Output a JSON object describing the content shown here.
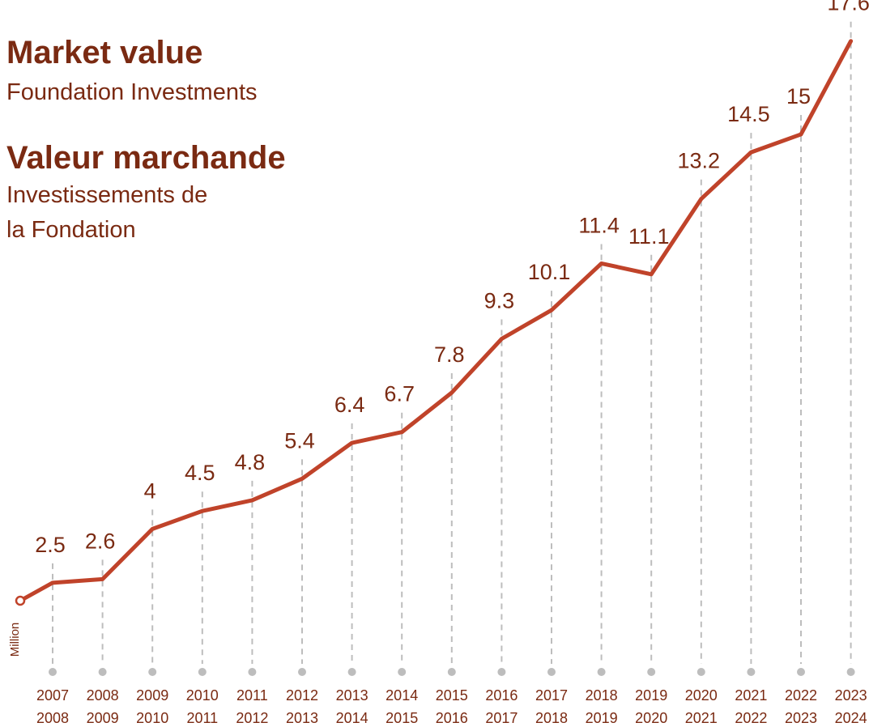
{
  "chart_data": {
    "type": "line",
    "title": "Market value",
    "subtitle": "Foundation Investments",
    "title_fr": "Valeur marchande",
    "subtitle_fr": [
      "Investissements de",
      "la Fondation"
    ],
    "y_label": "Million",
    "categories": [
      [
        "2007",
        "2008"
      ],
      [
        "2008",
        "2009"
      ],
      [
        "2009",
        "2010"
      ],
      [
        "2010",
        "2011"
      ],
      [
        "2011",
        "2012"
      ],
      [
        "2012",
        "2013"
      ],
      [
        "2013",
        "2014"
      ],
      [
        "2014",
        "2015"
      ],
      [
        "2015",
        "2016"
      ],
      [
        "2016",
        "2017"
      ],
      [
        "2017",
        "2018"
      ],
      [
        "2018",
        "2019"
      ],
      [
        "2019",
        "2020"
      ],
      [
        "2020",
        "2021"
      ],
      [
        "2021",
        "2022"
      ],
      [
        "2022",
        "2023"
      ],
      [
        "2023",
        "2024"
      ]
    ],
    "series": [
      {
        "name": "Market value",
        "color": "#c0432a",
        "values": [
          2.5,
          2.6,
          4,
          4.5,
          4.8,
          5.4,
          6.4,
          6.7,
          7.8,
          9.3,
          10.1,
          11.4,
          11.1,
          13.2,
          14.5,
          15,
          17.6
        ]
      }
    ],
    "ylim": [
      2,
      18
    ],
    "label_color": "#7a2a12",
    "grid": true
  }
}
